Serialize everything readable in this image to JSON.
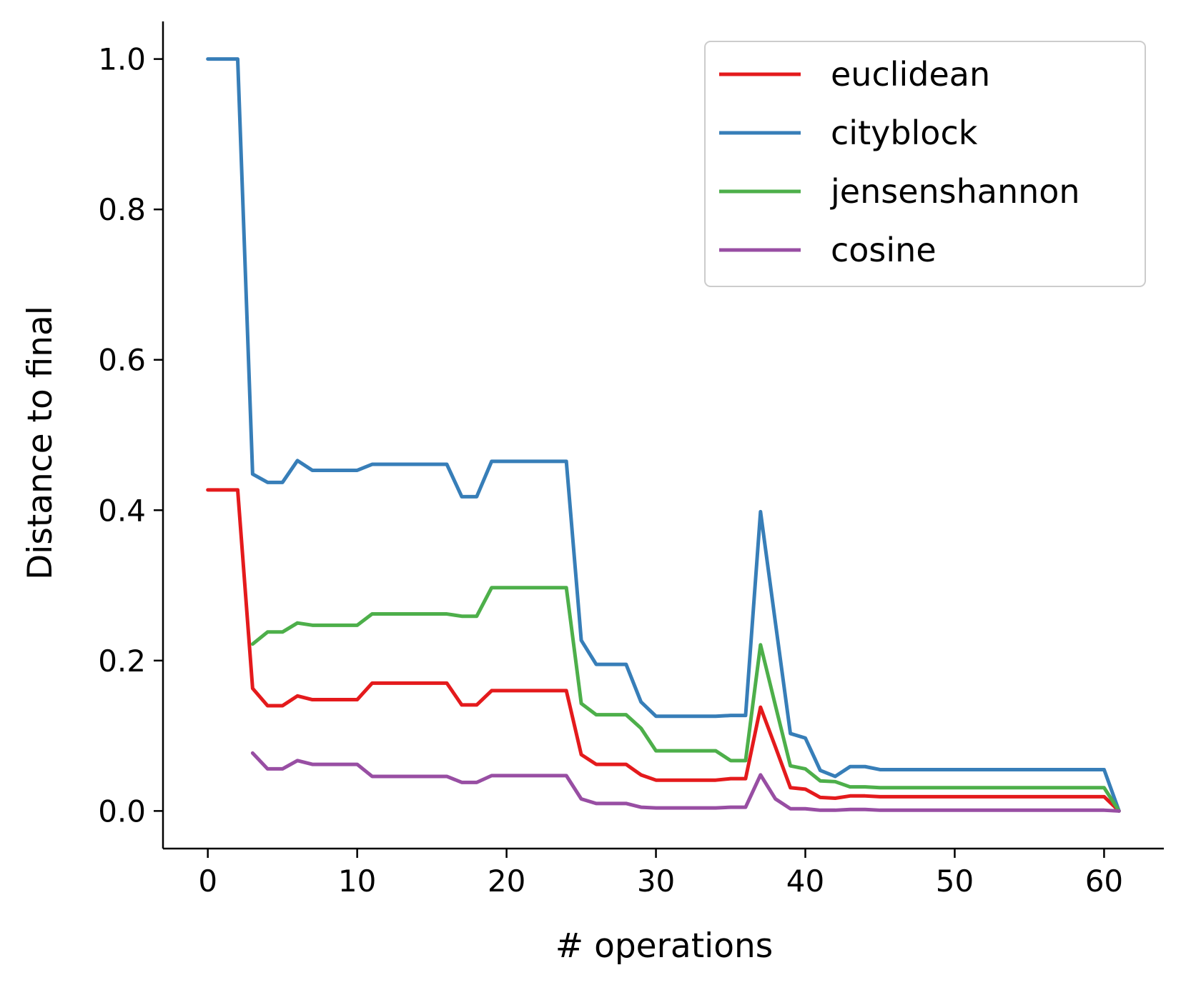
{
  "chart_data": {
    "type": "line",
    "title": "",
    "xlabel": "# operations",
    "ylabel": "Distance to final",
    "xlim": [
      -3,
      64
    ],
    "ylim": [
      -0.05,
      1.05
    ],
    "xticks": [
      0,
      10,
      20,
      30,
      40,
      50,
      60
    ],
    "yticks": [
      0.0,
      0.2,
      0.4,
      0.6,
      0.8,
      1.0
    ],
    "xtick_labels": [
      "0",
      "10",
      "20",
      "30",
      "40",
      "50",
      "60"
    ],
    "ytick_labels": [
      "0.0",
      "0.2",
      "0.4",
      "0.6",
      "0.8",
      "1.0"
    ],
    "grid": false,
    "legend_position": "top-right",
    "series": [
      {
        "name": "euclidean",
        "color": "#e41a1c",
        "x": [
          0,
          1,
          2,
          3,
          4,
          5,
          6,
          7,
          8,
          9,
          10,
          11,
          12,
          13,
          14,
          15,
          16,
          17,
          18,
          19,
          20,
          21,
          22,
          23,
          24,
          25,
          26,
          27,
          28,
          29,
          30,
          31,
          32,
          33,
          34,
          35,
          36,
          37,
          38,
          39,
          40,
          41,
          42,
          43,
          44,
          45,
          46,
          47,
          48,
          49,
          50,
          51,
          52,
          53,
          54,
          55,
          56,
          57,
          58,
          59,
          60,
          61
        ],
        "y": [
          0.427,
          0.427,
          0.427,
          0.163,
          0.14,
          0.14,
          0.153,
          0.148,
          0.148,
          0.148,
          0.148,
          0.17,
          0.17,
          0.17,
          0.17,
          0.17,
          0.17,
          0.141,
          0.141,
          0.16,
          0.16,
          0.16,
          0.16,
          0.16,
          0.16,
          0.075,
          0.062,
          0.062,
          0.062,
          0.048,
          0.041,
          0.041,
          0.041,
          0.041,
          0.041,
          0.043,
          0.043,
          0.138,
          0.085,
          0.031,
          0.029,
          0.018,
          0.017,
          0.02,
          0.02,
          0.019,
          0.019,
          0.019,
          0.019,
          0.019,
          0.019,
          0.019,
          0.019,
          0.019,
          0.019,
          0.019,
          0.019,
          0.019,
          0.019,
          0.019,
          0.019,
          0.0
        ]
      },
      {
        "name": "cityblock",
        "color": "#377eb8",
        "x": [
          0,
          1,
          2,
          3,
          4,
          5,
          6,
          7,
          8,
          9,
          10,
          11,
          12,
          13,
          14,
          15,
          16,
          17,
          18,
          19,
          20,
          21,
          22,
          23,
          24,
          25,
          26,
          27,
          28,
          29,
          30,
          31,
          32,
          33,
          34,
          35,
          36,
          37,
          38,
          39,
          40,
          41,
          42,
          43,
          44,
          45,
          46,
          47,
          48,
          49,
          50,
          51,
          52,
          53,
          54,
          55,
          56,
          57,
          58,
          59,
          60,
          61
        ],
        "y": [
          1.0,
          1.0,
          1.0,
          0.448,
          0.437,
          0.437,
          0.466,
          0.453,
          0.453,
          0.453,
          0.453,
          0.461,
          0.461,
          0.461,
          0.461,
          0.461,
          0.461,
          0.418,
          0.418,
          0.465,
          0.465,
          0.465,
          0.465,
          0.465,
          0.465,
          0.227,
          0.195,
          0.195,
          0.195,
          0.145,
          0.126,
          0.126,
          0.126,
          0.126,
          0.126,
          0.127,
          0.127,
          0.398,
          0.25,
          0.103,
          0.097,
          0.054,
          0.046,
          0.059,
          0.059,
          0.055,
          0.055,
          0.055,
          0.055,
          0.055,
          0.055,
          0.055,
          0.055,
          0.055,
          0.055,
          0.055,
          0.055,
          0.055,
          0.055,
          0.055,
          0.055,
          0.0
        ]
      },
      {
        "name": "jensenshannon",
        "color": "#4daf4a",
        "x": [
          3,
          4,
          5,
          6,
          7,
          8,
          9,
          10,
          11,
          12,
          13,
          14,
          15,
          16,
          17,
          18,
          19,
          20,
          21,
          22,
          23,
          24,
          25,
          26,
          27,
          28,
          29,
          30,
          31,
          32,
          33,
          34,
          35,
          36,
          37,
          38,
          39,
          40,
          41,
          42,
          43,
          44,
          45,
          46,
          47,
          48,
          49,
          50,
          51,
          52,
          53,
          54,
          55,
          56,
          57,
          58,
          59,
          60,
          61
        ],
        "y": [
          0.222,
          0.238,
          0.238,
          0.25,
          0.247,
          0.247,
          0.247,
          0.247,
          0.262,
          0.262,
          0.262,
          0.262,
          0.262,
          0.262,
          0.259,
          0.259,
          0.297,
          0.297,
          0.297,
          0.297,
          0.297,
          0.297,
          0.143,
          0.128,
          0.128,
          0.128,
          0.11,
          0.08,
          0.08,
          0.08,
          0.08,
          0.08,
          0.067,
          0.067,
          0.221,
          0.14,
          0.06,
          0.056,
          0.04,
          0.039,
          0.032,
          0.032,
          0.031,
          0.031,
          0.031,
          0.031,
          0.031,
          0.031,
          0.031,
          0.031,
          0.031,
          0.031,
          0.031,
          0.031,
          0.031,
          0.031,
          0.031,
          0.031,
          0.0
        ]
      },
      {
        "name": "cosine",
        "color": "#984ea3",
        "x": [
          3,
          4,
          5,
          6,
          7,
          8,
          9,
          10,
          11,
          12,
          13,
          14,
          15,
          16,
          17,
          18,
          19,
          20,
          21,
          22,
          23,
          24,
          25,
          26,
          27,
          28,
          29,
          30,
          31,
          32,
          33,
          34,
          35,
          36,
          37,
          38,
          39,
          40,
          41,
          42,
          43,
          44,
          45,
          46,
          47,
          48,
          49,
          50,
          51,
          52,
          53,
          54,
          55,
          56,
          57,
          58,
          59,
          60,
          61
        ],
        "y": [
          0.077,
          0.056,
          0.056,
          0.067,
          0.062,
          0.062,
          0.062,
          0.062,
          0.046,
          0.046,
          0.046,
          0.046,
          0.046,
          0.046,
          0.038,
          0.038,
          0.047,
          0.047,
          0.047,
          0.047,
          0.047,
          0.047,
          0.016,
          0.01,
          0.01,
          0.01,
          0.005,
          0.004,
          0.004,
          0.004,
          0.004,
          0.004,
          0.005,
          0.005,
          0.048,
          0.016,
          0.003,
          0.003,
          0.001,
          0.001,
          0.002,
          0.002,
          0.001,
          0.001,
          0.001,
          0.001,
          0.001,
          0.001,
          0.001,
          0.001,
          0.001,
          0.001,
          0.001,
          0.001,
          0.001,
          0.001,
          0.001,
          0.001,
          0.0
        ]
      }
    ]
  }
}
